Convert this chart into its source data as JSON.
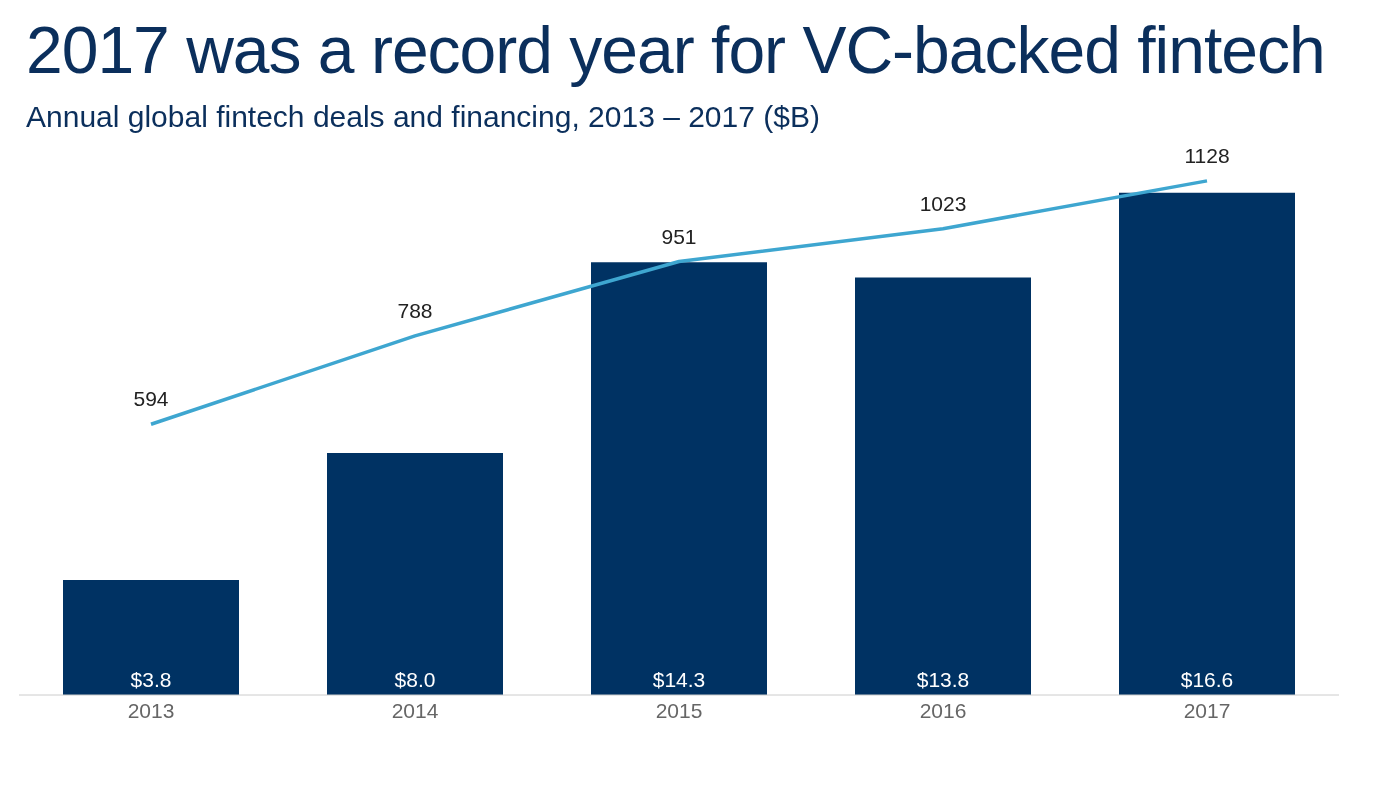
{
  "chart_data": {
    "type": "bar",
    "title": "2017 was a record year for VC-backed fintech",
    "subtitle": "Annual global fintech deals and financing, 2013 – 2017 ($B)",
    "categories": [
      "2013",
      "2014",
      "2015",
      "2016",
      "2017"
    ],
    "data_labels": true,
    "grid": false,
    "legend": false,
    "series": [
      {
        "color": "#003263",
        "values": [
          3.8,
          8.0,
          14.3,
          13.8,
          16.6
        ],
        "value_labels": [
          "$3.8",
          "$8.0",
          "$14.3",
          "$13.8",
          "$16.6"
        ]
      },
      {
        "type": "line",
        "axis": "y2",
        "color": "#3ea6d0",
        "marker": "none",
        "line_style": "solid",
        "values": [
          594,
          788,
          951,
          1023,
          1128
        ]
      }
    ]
  }
}
